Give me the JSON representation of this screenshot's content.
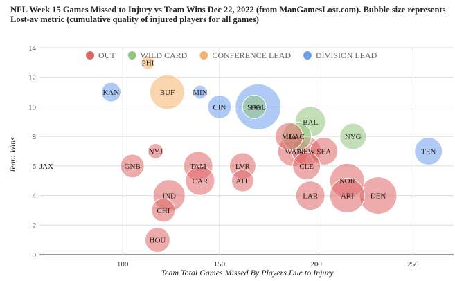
{
  "title_lines": [
    "NFL Week 15 Games Missed to Injury vs Team Wins Dec 22, 2022 (from ManGamesLost.com). Bubble size represents",
    "Lost-av metric (cumulative quality of injured players for all games)"
  ],
  "chart_data": {
    "type": "scatter",
    "bubble": true,
    "title": "NFL Week 15 Games Missed to Injury vs Team Wins Dec 22, 2022 (from ManGamesLost.com). Bubble size represents Lost-av metric (cumulative quality of injured players for all games)",
    "xlabel": "Team Total Games Missed By Players Due to Injury",
    "ylabel": "Team Wins",
    "xlim": [
      57,
      271
    ],
    "ylim": [
      0,
      14
    ],
    "xticks": [
      100,
      150,
      200,
      250
    ],
    "yticks": [
      0,
      2,
      4,
      6,
      8,
      10,
      12,
      14
    ],
    "grid": true,
    "legend_position": "top",
    "series": [
      {
        "name": "OUT",
        "color": "#e06666",
        "points": [
          {
            "label": "JAX",
            "x": 57,
            "y": 6,
            "size": 0
          },
          {
            "label": "GNB",
            "x": 105,
            "y": 6,
            "size": 17
          },
          {
            "label": "NYJ",
            "x": 117,
            "y": 7,
            "size": 11
          },
          {
            "label": "IND",
            "x": 124,
            "y": 4,
            "size": 23
          },
          {
            "label": "CHI",
            "x": 121,
            "y": 3,
            "size": 17
          },
          {
            "label": "HOU",
            "x": 118,
            "y": 1,
            "size": 18
          },
          {
            "label": "TAM",
            "x": 139,
            "y": 6,
            "size": 21
          },
          {
            "label": "CAR",
            "x": 140,
            "y": 5,
            "size": 21
          },
          {
            "label": "LVR",
            "x": 162,
            "y": 6,
            "size": 19
          },
          {
            "label": "ATL",
            "x": 162,
            "y": 5,
            "size": 16
          },
          {
            "label": "MIA",
            "x": 186,
            "y": 8,
            "size": 20
          },
          {
            "label": "WAS",
            "x": 188,
            "y": 7,
            "size": 22
          },
          {
            "label": "NEW",
            "x": 195,
            "y": 7,
            "size": 21
          },
          {
            "label": "SEA",
            "x": 204,
            "y": 7,
            "size": 20
          },
          {
            "label": "CLE",
            "x": 195,
            "y": 6,
            "size": 20
          },
          {
            "label": "LAR",
            "x": 197,
            "y": 4,
            "size": 21
          },
          {
            "label": "NOR",
            "x": 216,
            "y": 5,
            "size": 25
          },
          {
            "label": "ARI",
            "x": 216,
            "y": 4,
            "size": 25
          },
          {
            "label": "DEN",
            "x": 232,
            "y": 4,
            "size": 27
          }
        ]
      },
      {
        "name": "WILD CARD",
        "color": "#93c47d",
        "points": [
          {
            "label": "SFO",
            "x": 168,
            "y": 10,
            "size": 17
          },
          {
            "label": "LAC",
            "x": 190,
            "y": 8,
            "size": 21
          },
          {
            "label": "BAL",
            "x": 197,
            "y": 9,
            "size": 22
          },
          {
            "label": "NYG",
            "x": 219,
            "y": 8,
            "size": 19
          }
        ]
      },
      {
        "name": "CONFERENCE LEAD",
        "color": "#f6b26b",
        "points": [
          {
            "label": "PHI",
            "x": 113,
            "y": 13,
            "size": 10
          },
          {
            "label": "BUF",
            "x": 123,
            "y": 11,
            "size": 25
          }
        ]
      },
      {
        "name": "DIVISION LEAD",
        "color": "#6d9eeb",
        "points": [
          {
            "label": "KAN",
            "x": 94,
            "y": 11,
            "size": 14
          },
          {
            "label": "MIN",
            "x": 140,
            "y": 11,
            "size": 10
          },
          {
            "label": "CIN",
            "x": 150,
            "y": 10,
            "size": 17
          },
          {
            "label": "DAL",
            "x": 170,
            "y": 10,
            "size": 33
          },
          {
            "label": "TEN",
            "x": 258,
            "y": 7,
            "size": 20
          }
        ]
      }
    ]
  }
}
